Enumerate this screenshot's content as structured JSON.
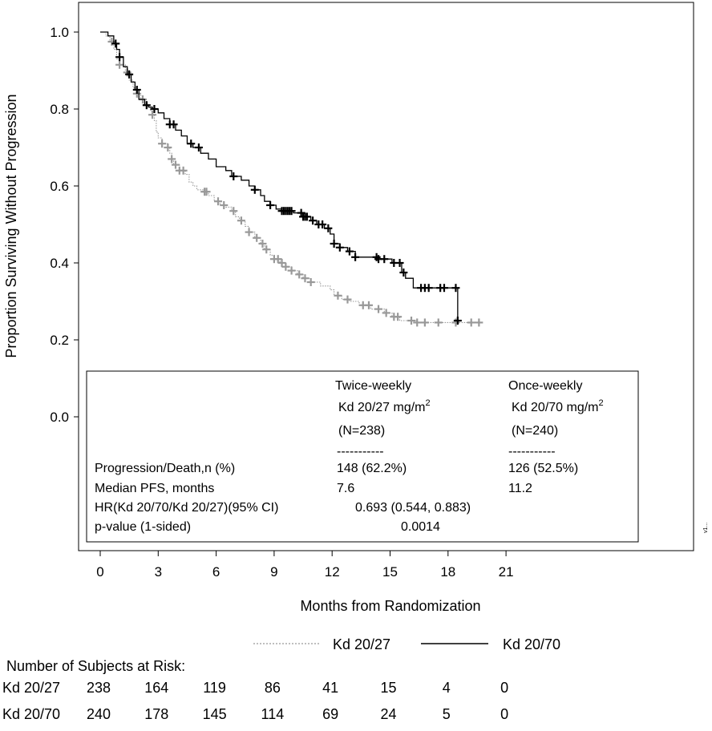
{
  "chart_data": {
    "type": "line",
    "subtype": "kaplan-meier",
    "xlabel": "Months from Randomization",
    "ylabel": "Proportion Surviving Without Progression",
    "xlim": [
      0,
      21
    ],
    "ylim": [
      -0.3,
      1.05
    ],
    "xticks": [
      "0",
      "3",
      "6",
      "9",
      "12",
      "15",
      "18",
      "21"
    ],
    "yticks": [
      "0.0",
      "0.2",
      "0.4",
      "0.6",
      "0.8",
      "1.0"
    ],
    "grid": false,
    "series": [
      {
        "name": "Kd 20/27",
        "color": "#999999",
        "style": "dotted",
        "steps": [
          [
            0,
            1.0
          ],
          [
            0.3,
            0.99
          ],
          [
            0.5,
            0.975
          ],
          [
            0.7,
            0.955
          ],
          [
            0.85,
            0.93
          ],
          [
            1.0,
            0.915
          ],
          [
            1.3,
            0.895
          ],
          [
            1.5,
            0.875
          ],
          [
            1.7,
            0.855
          ],
          [
            1.9,
            0.84
          ],
          [
            2.1,
            0.825
          ],
          [
            2.3,
            0.815
          ],
          [
            2.5,
            0.805
          ],
          [
            2.6,
            0.795
          ],
          [
            2.7,
            0.785
          ],
          [
            2.8,
            0.77
          ],
          [
            2.9,
            0.74
          ],
          [
            3.0,
            0.725
          ],
          [
            3.2,
            0.71
          ],
          [
            3.5,
            0.7
          ],
          [
            3.6,
            0.685
          ],
          [
            3.7,
            0.67
          ],
          [
            3.8,
            0.655
          ],
          [
            4.1,
            0.64
          ],
          [
            4.4,
            0.63
          ],
          [
            4.6,
            0.61
          ],
          [
            4.8,
            0.6
          ],
          [
            5.0,
            0.59
          ],
          [
            5.4,
            0.585
          ],
          [
            5.6,
            0.575
          ],
          [
            5.9,
            0.56
          ],
          [
            6.2,
            0.55
          ],
          [
            6.5,
            0.545
          ],
          [
            6.8,
            0.535
          ],
          [
            7.0,
            0.52
          ],
          [
            7.2,
            0.51
          ],
          [
            7.5,
            0.495
          ],
          [
            7.7,
            0.48
          ],
          [
            8.0,
            0.465
          ],
          [
            8.3,
            0.45
          ],
          [
            8.5,
            0.435
          ],
          [
            8.8,
            0.42
          ],
          [
            9.0,
            0.41
          ],
          [
            9.3,
            0.4
          ],
          [
            9.6,
            0.39
          ],
          [
            9.9,
            0.38
          ],
          [
            10.2,
            0.37
          ],
          [
            10.5,
            0.36
          ],
          [
            10.9,
            0.35
          ],
          [
            11.4,
            0.34
          ],
          [
            11.9,
            0.33
          ],
          [
            12.1,
            0.315
          ],
          [
            12.5,
            0.305
          ],
          [
            12.9,
            0.3
          ],
          [
            13.4,
            0.29
          ],
          [
            14.0,
            0.28
          ],
          [
            14.7,
            0.27
          ],
          [
            15.1,
            0.26
          ],
          [
            15.5,
            0.25
          ],
          [
            16.4,
            0.245
          ],
          [
            19.6,
            0.245
          ]
        ],
        "censor_x": [
          0.6,
          1.0,
          1.4,
          1.9,
          2.2,
          2.7,
          3.2,
          3.5,
          3.7,
          3.9,
          4.1,
          4.3,
          5.4,
          5.5,
          6.1,
          6.4,
          6.9,
          7.3,
          7.7,
          8.1,
          8.4,
          8.6,
          9.0,
          9.2,
          9.4,
          9.6,
          9.9,
          10.3,
          10.6,
          10.9,
          12.3,
          12.8,
          13.6,
          13.9,
          14.4,
          14.8,
          15.2,
          15.4,
          16.1,
          16.4,
          16.8,
          17.5,
          18.4,
          19.2,
          19.6
        ]
      },
      {
        "name": "Kd 20/70",
        "color": "#000000",
        "style": "solid",
        "steps": [
          [
            0,
            1.0
          ],
          [
            0.4,
            0.99
          ],
          [
            0.7,
            0.97
          ],
          [
            0.85,
            0.955
          ],
          [
            1.0,
            0.935
          ],
          [
            1.2,
            0.91
          ],
          [
            1.4,
            0.89
          ],
          [
            1.6,
            0.87
          ],
          [
            1.8,
            0.85
          ],
          [
            2.0,
            0.825
          ],
          [
            2.3,
            0.81
          ],
          [
            2.5,
            0.805
          ],
          [
            2.7,
            0.8
          ],
          [
            3.0,
            0.79
          ],
          [
            3.3,
            0.775
          ],
          [
            3.6,
            0.76
          ],
          [
            3.9,
            0.745
          ],
          [
            4.2,
            0.73
          ],
          [
            4.5,
            0.71
          ],
          [
            4.8,
            0.7
          ],
          [
            5.2,
            0.685
          ],
          [
            5.6,
            0.67
          ],
          [
            6.0,
            0.65
          ],
          [
            6.5,
            0.64
          ],
          [
            6.8,
            0.625
          ],
          [
            7.3,
            0.615
          ],
          [
            7.7,
            0.6
          ],
          [
            8.0,
            0.59
          ],
          [
            8.3,
            0.575
          ],
          [
            8.5,
            0.56
          ],
          [
            8.8,
            0.55
          ],
          [
            9.1,
            0.54
          ],
          [
            9.4,
            0.535
          ],
          [
            10.0,
            0.53
          ],
          [
            10.5,
            0.52
          ],
          [
            10.9,
            0.51
          ],
          [
            11.2,
            0.5
          ],
          [
            11.6,
            0.49
          ],
          [
            11.9,
            0.475
          ],
          [
            12.1,
            0.45
          ],
          [
            12.4,
            0.44
          ],
          [
            12.8,
            0.43
          ],
          [
            13.2,
            0.415
          ],
          [
            14.4,
            0.41
          ],
          [
            15.1,
            0.4
          ],
          [
            15.6,
            0.375
          ],
          [
            15.8,
            0.36
          ],
          [
            16.2,
            0.335
          ],
          [
            18.4,
            0.335
          ],
          [
            18.5,
            0.25
          ],
          [
            18.6,
            0.25
          ]
        ],
        "censor_x": [
          0.8,
          1.0,
          1.5,
          1.9,
          2.4,
          2.8,
          3.6,
          3.8,
          4.7,
          5.1,
          6.9,
          8.0,
          8.8,
          9.4,
          9.5,
          9.6,
          9.7,
          9.8,
          9.9,
          10.4,
          10.5,
          10.6,
          10.7,
          11.0,
          11.3,
          11.5,
          11.8,
          12.1,
          12.4,
          12.9,
          13.2,
          14.3,
          14.4,
          14.7,
          15.2,
          15.5,
          15.7,
          16.6,
          16.8,
          17.0,
          17.6,
          17.8,
          18.4,
          18.5
        ]
      }
    ],
    "stats_table": {
      "col_twice": {
        "line1": "Twice-weekly",
        "line2": "Kd 20/27 mg/m",
        "sup": "2",
        "n": "(N=238)",
        "dash": "-----------"
      },
      "col_once": {
        "line1": "Once-weekly",
        "line2": "Kd 20/70 mg/m",
        "sup": "2",
        "n": "(N=240)",
        "dash": "-----------"
      },
      "rows": [
        {
          "label": "Progression/Death,n (%)",
          "twice": "148 (62.2%)",
          "once": "126 (52.5%)"
        },
        {
          "label": "Median PFS, months",
          "twice": "7.6",
          "once": "11.2"
        }
      ],
      "hr_label": "HR(Kd 20/70/Kd 20/27)(95% CI)",
      "hr_value": "0.693 (0.544, 0.883)",
      "p_label": "p-value (1-sided)",
      "p_value": "0.0014"
    },
    "legend": {
      "position": "below-axis",
      "entries": [
        {
          "label": "Kd 20/27",
          "style": "dotted",
          "color": "#999999"
        },
        {
          "label": "Kd 20/70",
          "style": "solid",
          "color": "#000000"
        }
      ]
    },
    "at_risk": {
      "title": "Number of Subjects at Risk:",
      "rows": [
        {
          "label": "Kd 20/27",
          "values": [
            "238",
            "164",
            "119",
            "86",
            "41",
            "15",
            "4",
            "0"
          ]
        },
        {
          "label": "Kd 20/70",
          "values": [
            "240",
            "178",
            "145",
            "114",
            "69",
            "24",
            "5",
            "0"
          ]
        }
      ]
    },
    "side_id": "v1..."
  }
}
